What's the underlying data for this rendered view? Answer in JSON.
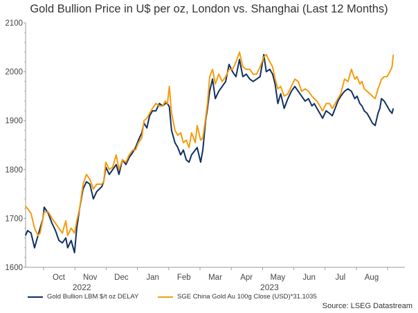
{
  "chart_data": {
    "type": "line",
    "title": "Gold Bullion Price in U$ per oz, London vs. Shanghai (Last 12 Months)",
    "xlabel": "",
    "ylabel": "",
    "ylim": [
      1600,
      2100
    ],
    "yticks": [
      1600,
      1700,
      1800,
      1900,
      2000,
      2100
    ],
    "xlim": [
      0.42,
      12.5
    ],
    "x_unit": "months since Sep 1 2022 (Oct = 1)",
    "xticks": [
      {
        "pos": 1,
        "label": "Oct"
      },
      {
        "pos": 2,
        "label": "Nov"
      },
      {
        "pos": 3,
        "label": "Dec"
      },
      {
        "pos": 4,
        "label": "Jan"
      },
      {
        "pos": 5,
        "label": "Feb"
      },
      {
        "pos": 6,
        "label": "Mar"
      },
      {
        "pos": 7,
        "label": "Apr"
      },
      {
        "pos": 8,
        "label": "May"
      },
      {
        "pos": 9,
        "label": "Jun"
      },
      {
        "pos": 10,
        "label": "Jul"
      },
      {
        "pos": 11,
        "label": "Aug"
      },
      {
        "pos": 12,
        "label": ""
      }
    ],
    "year_labels": [
      {
        "pos": 2,
        "label": "2022"
      },
      {
        "pos": 8,
        "label": "2023"
      }
    ],
    "grid": false,
    "legend_position": "bottom",
    "x": [
      0.42,
      0.49,
      0.6,
      0.71,
      0.82,
      0.89,
      0.98,
      1.02,
      1.15,
      1.27,
      1.38,
      1.49,
      1.6,
      1.71,
      1.77,
      1.88,
      1.99,
      2.06,
      2.15,
      2.26,
      2.37,
      2.48,
      2.59,
      2.7,
      2.86,
      2.92,
      2.99,
      3.1,
      3.21,
      3.32,
      3.41,
      3.52,
      3.63,
      3.74,
      3.85,
      3.94,
      4.03,
      4.14,
      4.21,
      4.3,
      4.39,
      4.48,
      4.59,
      4.7,
      4.81,
      4.89,
      4.96,
      5.02,
      5.09,
      5.2,
      5.29,
      5.38,
      5.47,
      5.56,
      5.65,
      5.73,
      5.85,
      5.91,
      6.02,
      6.09,
      6.18,
      6.24,
      6.31,
      6.4,
      6.49,
      6.6,
      6.71,
      6.82,
      6.93,
      7.04,
      7.15,
      7.26,
      7.37,
      7.48,
      7.59,
      7.7,
      7.81,
      7.92,
      8.04,
      8.12,
      8.23,
      8.32,
      8.4,
      8.49,
      8.58,
      8.69,
      8.81,
      8.92,
      9.03,
      9.14,
      9.25,
      9.36,
      9.47,
      9.58,
      9.65,
      9.74,
      9.83,
      9.92,
      10.03,
      10.14,
      10.23,
      10.32,
      10.41,
      10.5,
      10.62,
      10.73,
      10.84,
      10.95,
      11.02,
      11.11,
      11.18,
      11.25,
      11.34,
      11.43,
      11.51,
      11.6,
      11.69,
      11.75,
      11.8
    ],
    "series": [
      {
        "name": "Gold Bullion LBM $/t oz DELAY",
        "color": "#0f2f62",
        "values": [
          1665,
          1675,
          1670,
          1640,
          1665,
          1680,
          1700,
          1723,
          1710,
          1690,
          1675,
          1655,
          1650,
          1660,
          1640,
          1655,
          1630,
          1680,
          1720,
          1760,
          1775,
          1770,
          1740,
          1755,
          1765,
          1775,
          1805,
          1790,
          1800,
          1810,
          1790,
          1820,
          1810,
          1825,
          1835,
          1845,
          1860,
          1875,
          1895,
          1885,
          1910,
          1920,
          1920,
          1935,
          1930,
          1935,
          1935,
          1928,
          1880,
          1855,
          1845,
          1830,
          1840,
          1820,
          1815,
          1830,
          1840,
          1845,
          1815,
          1840,
          1900,
          1925,
          1960,
          1985,
          1945,
          1960,
          1970,
          1980,
          2015,
          2000,
          1990,
          2025,
          1990,
          1995,
          1985,
          1980,
          1985,
          1990,
          2035,
          2000,
          2005,
          1995,
          1975,
          1935,
          1955,
          1925,
          1945,
          1960,
          1970,
          1960,
          1950,
          1940,
          1945,
          1930,
          1935,
          1925,
          1915,
          1905,
          1920,
          1915,
          1910,
          1925,
          1940,
          1950,
          1960,
          1965,
          1960,
          1945,
          1950,
          1935,
          1930,
          1920,
          1915,
          1905,
          1895,
          1890,
          1915,
          1925,
          1945
        ]
      },
      {
        "name": "SGE China Gold Au 100g Close (USD)*31.1035",
        "color": "#f59b0c",
        "values": [
          1725,
          1720,
          1710,
          1680,
          1665,
          1670,
          1700,
          1713,
          1713,
          1700,
          1690,
          1680,
          1670,
          1695,
          1665,
          1680,
          1670,
          1695,
          1720,
          1770,
          1790,
          1780,
          1760,
          1770,
          1770,
          1775,
          1815,
          1800,
          1805,
          1830,
          1800,
          1820,
          1815,
          1830,
          1840,
          1840,
          1855,
          1865,
          1900,
          1905,
          1915,
          1925,
          1935,
          1930,
          1930,
          1940,
          1935,
          1970,
          1915,
          1880,
          1870,
          1875,
          1855,
          1860,
          1845,
          1875,
          1855,
          1890,
          1860,
          1865,
          1905,
          1935,
          1990,
          2005,
          1975,
          1995,
          1980,
          1990,
          2005,
          2005,
          2020,
          2040,
          2010,
          2005,
          2005,
          1995,
          1995,
          2010,
          2030,
          2035,
          2020,
          2010,
          1985,
          1965,
          1970,
          1950,
          1955,
          1970,
          1985,
          1980,
          1960,
          1965,
          1960,
          1950,
          1945,
          1940,
          1930,
          1920,
          1935,
          1935,
          1925,
          1935,
          1945,
          1955,
          1985,
          1980,
          2005,
          1985,
          1990,
          1975,
          1980,
          1965,
          1960,
          1955,
          1950,
          1945,
          1965,
          1975,
          1985
        ]
      }
    ],
    "extra_tail": {
      "x": [
        11.89,
        11.98,
        12.07,
        12.14,
        12.18
      ],
      "Gold Bullion LBM $/t oz DELAY": [
        1940,
        1930,
        1920,
        1915,
        1925
      ],
      "SGE China Gold Au 100g Close (USD)*31.1035": [
        1990,
        1990,
        2000,
        2010,
        2035
      ]
    },
    "source": "Source: LSEG Datastream"
  }
}
